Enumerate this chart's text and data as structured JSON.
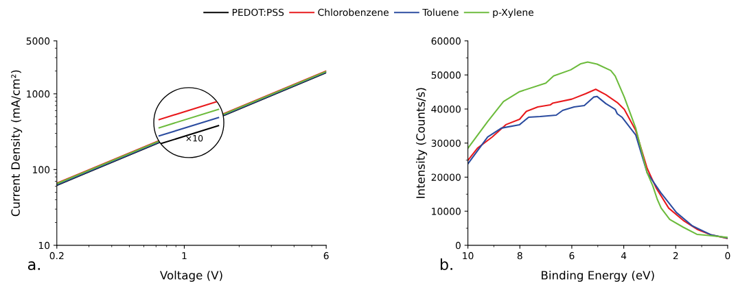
{
  "chart_data": [
    {
      "type": "line",
      "xlabel": "Voltage (V)",
      "ylabel": "Current Density (mA/cm²)",
      "log": "xy",
      "legend": "top",
      "xlim": [
        0.2,
        6
      ],
      "xticks": [
        0.2,
        1,
        6
      ],
      "ylim": [
        10,
        5000
      ],
      "yticks": [
        10,
        100,
        1000,
        5000
      ],
      "x": [
        0.2,
        6
      ],
      "series": [
        {
          "name": "PEDOT:PSS",
          "color": "#000000",
          "values": [
            62,
            1900
          ]
        },
        {
          "name": "Chlorobenzene",
          "color": "#e8191c",
          "values": [
            66,
            2000
          ]
        },
        {
          "name": "Toluene",
          "color": "#2a4b9f",
          "values": [
            63,
            1930
          ]
        },
        {
          "name": "p-Xylene",
          "color": "#6cbb3c",
          "values": [
            65,
            1970
          ]
        }
      ],
      "annotations": [
        "×10",
        "a."
      ]
    },
    {
      "type": "line",
      "xlabel": "Binding Energy (eV)",
      "ylabel": "Intensity (Counts/s)",
      "xlim": [
        10,
        0
      ],
      "xticks": [
        10,
        8,
        6,
        4,
        2,
        0
      ],
      "ylim": [
        0,
        60000
      ],
      "yticks": [
        0,
        10000,
        20000,
        30000,
        40000,
        50000,
        60000
      ],
      "series": [
        {
          "color": "#e8191c",
          "x": [
            10,
            9.63,
            9.06,
            8.54,
            8.01,
            7.75,
            7.31,
            6.83,
            6.74,
            6.0,
            5.47,
            5.08,
            4.69,
            4.25,
            3.98,
            3.54,
            3.1,
            2.75,
            2.27,
            1.71,
            1.18,
            0.65,
            0
          ],
          "values": [
            24900,
            28500,
            31800,
            35400,
            37000,
            39300,
            40600,
            41200,
            41700,
            42900,
            44500,
            45800,
            44200,
            41900,
            39900,
            33700,
            22600,
            16800,
            10900,
            7300,
            4700,
            3100,
            2000
          ]
        },
        {
          "color": "#2a4b9f",
          "x": [
            10,
            9.24,
            8.71,
            8.01,
            7.66,
            7.22,
            6.6,
            6.35,
            5.91,
            5.52,
            5.16,
            5.03,
            4.69,
            4.33,
            4.25,
            4.07,
            3.54,
            3.1,
            2.58,
            1.97,
            1.36,
            0.65,
            0
          ],
          "values": [
            23900,
            31800,
            34400,
            35400,
            37600,
            37800,
            38200,
            39600,
            40600,
            41000,
            43500,
            43700,
            41600,
            39900,
            38600,
            37600,
            32400,
            21300,
            15500,
            9600,
            5700,
            3100,
            2100
          ]
        },
        {
          "color": "#6cbb3c",
          "x": [
            10,
            9.24,
            8.63,
            8.01,
            7.0,
            6.7,
            6.04,
            5.65,
            5.39,
            5.03,
            4.5,
            4.33,
            3.98,
            3.54,
            3.1,
            2.88,
            2.71,
            2.56,
            2.23,
            1.71,
            1.18,
            0.74,
            0
          ],
          "values": [
            28500,
            36300,
            42200,
            45100,
            47600,
            49700,
            51500,
            53300,
            53800,
            53200,
            51300,
            49700,
            43500,
            34400,
            21300,
            17400,
            13500,
            10900,
            7600,
            5300,
            3200,
            2900,
            2300
          ]
        }
      ],
      "annotations": [
        "b."
      ]
    }
  ]
}
